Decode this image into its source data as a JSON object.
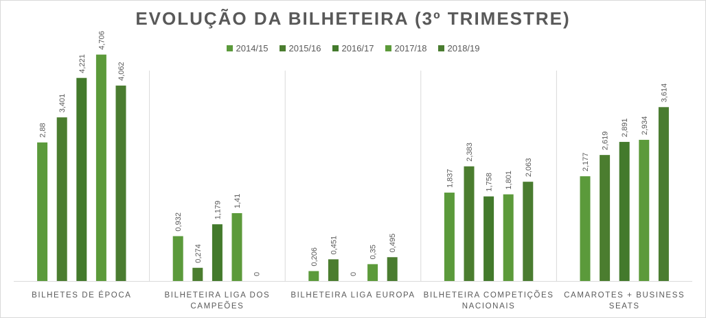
{
  "chart_data": {
    "type": "bar",
    "title": "EVOLUÇÃO DA BILHETEIRA (3º TRIMESTRE)",
    "categories": [
      [
        "BILHETES DE ÉPOCA"
      ],
      [
        "BILHETEIRA LIGA DOS",
        "CAMPEÕES"
      ],
      [
        "BILHETEIRA LIGA EUROPA"
      ],
      [
        "BILHETEIRA COMPETIÇÕES",
        "NACIONAIS"
      ],
      [
        "CAMAROTES + BUSINESS",
        "SEATS"
      ]
    ],
    "series": [
      {
        "name": "2014/15",
        "values": [
          2.88,
          0.932,
          0.206,
          1.837,
          2.177
        ],
        "labels": [
          "2,88",
          "0,932",
          "0,206",
          "1,837",
          "2,177"
        ]
      },
      {
        "name": "2015/16",
        "values": [
          3.401,
          0.274,
          0.451,
          2.383,
          2.619
        ],
        "labels": [
          "3,401",
          "0,274",
          "0,451",
          "2,383",
          "2,619"
        ]
      },
      {
        "name": "2016/17",
        "values": [
          4.221,
          1.179,
          0,
          1.758,
          2.891
        ],
        "labels": [
          "4,221",
          "1,179",
          "0",
          "1,758",
          "2,891"
        ]
      },
      {
        "name": "2017/18",
        "values": [
          4.706,
          1.41,
          0.35,
          1.801,
          2.934
        ],
        "labels": [
          "4,706",
          "1,41",
          "0,35",
          "1,801",
          "2,934"
        ]
      },
      {
        "name": "2018/19",
        "values": [
          4.062,
          0,
          0.495,
          2.063,
          3.614
        ],
        "labels": [
          "4,062",
          "0",
          "0,495",
          "2,063",
          "3,614"
        ]
      }
    ],
    "ylim": [
      0,
      5
    ],
    "legend_position": "top-center",
    "grid": false,
    "colors": [
      "#5b9a3b",
      "#4b7d2f",
      "#437a2c",
      "#5c9a3a",
      "#4a7c30"
    ]
  }
}
